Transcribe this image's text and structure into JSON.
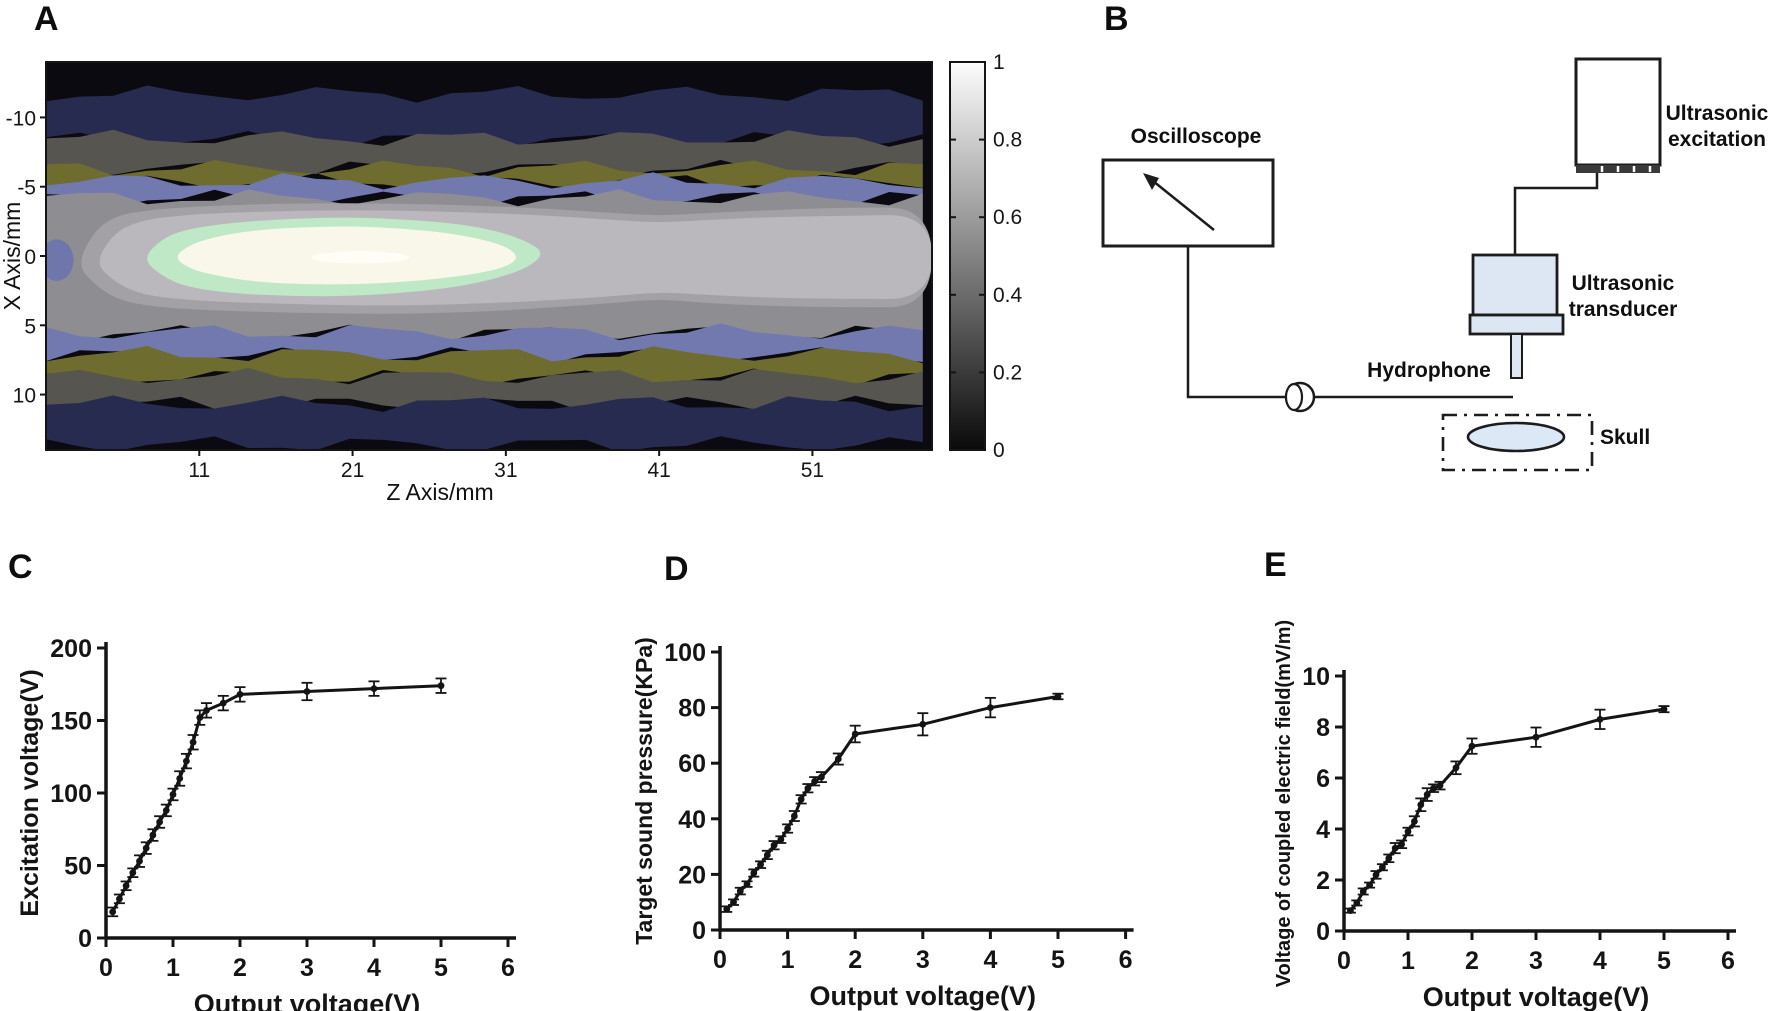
{
  "figure": {
    "labels": {
      "a": "A",
      "b": "B",
      "c": "C",
      "d": "D",
      "e": "E"
    }
  },
  "diagram": {
    "oscilloscope": "Oscilloscope",
    "excitation_line1": "Ultrasonic",
    "excitation_line2": "excitation",
    "transducer_line1": "Ultrasonic",
    "transducer_line2": "transducer",
    "hydrophone": "Hydrophone",
    "skull": "Skull"
  },
  "chart_data": [
    {
      "type": "heatmap",
      "panel": "A",
      "xlabel": "Z Axis/mm",
      "ylabel": "X Axis/mm",
      "xlim": [
        1,
        58.8
      ],
      "ylim": [
        -14,
        14
      ],
      "xticks": [
        11,
        21,
        31,
        41,
        51
      ],
      "yticks": [
        -10,
        -5,
        0,
        5,
        10
      ],
      "background": "#0b0a10",
      "colorbar": {
        "min": 0,
        "max": 1,
        "ticks": [
          {
            "v": 1,
            "label": "1"
          },
          {
            "v": 0.8,
            "label": "0.8"
          },
          {
            "v": 0.6,
            "label": "0.6"
          },
          {
            "v": 0.4,
            "label": "0.4"
          },
          {
            "v": 0.2,
            "label": "0.2"
          },
          {
            "v": 0,
            "label": "0"
          }
        ],
        "gradient_top": "#fdfdfd",
        "gradient_bottom": "#0a0a0a"
      },
      "bands": [
        {
          "color": "#282b50",
          "from": -11.7,
          "to": -8.4,
          "seed": 0.3
        },
        {
          "color": "#56554f",
          "from": -8.5,
          "to": -6.3,
          "seed": 2.1
        },
        {
          "color": "#6f6c2f",
          "from": -6.35,
          "to": -5.35,
          "seed": 4.2
        },
        {
          "color": "#7279af",
          "from": -5.4,
          "to": -4.15,
          "seed": 1.4
        },
        {
          "color": "#8e8d91",
          "from": -4.2,
          "to": 5.55,
          "seed": 2.8
        },
        {
          "color": "#7279af",
          "from": 5.5,
          "to": 7.15,
          "seed": 5.1
        },
        {
          "color": "#6f6c2f",
          "from": 7.1,
          "to": 8.75,
          "seed": 0.9
        },
        {
          "color": "#56554f",
          "from": 8.7,
          "to": 10.7,
          "seed": 3.3
        },
        {
          "color": "#282b50",
          "from": 10.65,
          "to": 13.6,
          "seed": 1.9
        }
      ],
      "blobs": [
        {
          "color": "#6f76ac",
          "ellipse": [
            1.7,
            0.3,
            1.1,
            1.5
          ]
        },
        {
          "color": "#a3a1a5",
          "points": [
            [
              3,
              0.6
            ],
            [
              4.2,
              -1.9
            ],
            [
              5.6,
              -2.9
            ],
            [
              7.5,
              -3.3
            ],
            [
              11,
              -3.6
            ],
            [
              17,
              -3.8
            ],
            [
              24,
              -3.8
            ],
            [
              30,
              -3.6
            ],
            [
              34,
              -3.4
            ],
            [
              38,
              -3.1
            ],
            [
              41,
              -2.9
            ],
            [
              44,
              -3.1
            ],
            [
              48,
              -3.3
            ],
            [
              53,
              -3.5
            ],
            [
              58.8,
              -3.5
            ],
            [
              58.8,
              3.7
            ],
            [
              53,
              3.7
            ],
            [
              48,
              3.6
            ],
            [
              44,
              3.4
            ],
            [
              41,
              3.1
            ],
            [
              38,
              3.4
            ],
            [
              34,
              3.7
            ],
            [
              30,
              4.0
            ],
            [
              24,
              4.2
            ],
            [
              17,
              4.1
            ],
            [
              11,
              3.9
            ],
            [
              7.5,
              3.6
            ],
            [
              5.6,
              3.1
            ],
            [
              4.2,
              2.1
            ]
          ]
        },
        {
          "color": "#bab8bc",
          "points": [
            [
              4.2,
              0.5
            ],
            [
              5.4,
              -1.6
            ],
            [
              6.8,
              -2.4
            ],
            [
              8.5,
              -2.8
            ],
            [
              12,
              -3.1
            ],
            [
              18,
              -3.3
            ],
            [
              24,
              -3.3
            ],
            [
              30,
              -3.1
            ],
            [
              34,
              -2.9
            ],
            [
              38,
              -2.6
            ],
            [
              41,
              -2.4
            ],
            [
              44,
              -2.6
            ],
            [
              48,
              -2.8
            ],
            [
              53,
              -2.9
            ],
            [
              58.8,
              -3.0
            ],
            [
              58.8,
              3.1
            ],
            [
              53,
              3.1
            ],
            [
              48,
              3.0
            ],
            [
              44,
              2.8
            ],
            [
              41,
              2.6
            ],
            [
              38,
              2.9
            ],
            [
              34,
              3.2
            ],
            [
              30,
              3.4
            ],
            [
              24,
              3.6
            ],
            [
              18,
              3.5
            ],
            [
              12,
              3.3
            ],
            [
              8.5,
              3.0
            ],
            [
              6.8,
              2.6
            ],
            [
              5.4,
              1.8
            ]
          ]
        },
        {
          "color": "#bfe8c6",
          "points": [
            [
              7.3,
              0.2
            ],
            [
              8.5,
              -1.2
            ],
            [
              10,
              -1.9
            ],
            [
              13,
              -2.4
            ],
            [
              17,
              -2.7
            ],
            [
              21,
              -2.8
            ],
            [
              25,
              -2.6
            ],
            [
              28,
              -2.3
            ],
            [
              30.5,
              -1.8
            ],
            [
              32.5,
              -1.0
            ],
            [
              33.5,
              -0.2
            ],
            [
              32.5,
              0.8
            ],
            [
              30.5,
              1.6
            ],
            [
              28,
              2.2
            ],
            [
              25,
              2.6
            ],
            [
              21,
              2.9
            ],
            [
              17,
              2.9
            ],
            [
              13,
              2.7
            ],
            [
              10,
              2.2
            ],
            [
              8.5,
              1.4
            ]
          ]
        },
        {
          "color": "#f9f7ea",
          "points": [
            [
              9.3,
              0.1
            ],
            [
              10.5,
              -0.9
            ],
            [
              12.5,
              -1.5
            ],
            [
              15,
              -1.9
            ],
            [
              18,
              -2.1
            ],
            [
              21,
              -2.15
            ],
            [
              24,
              -2.0
            ],
            [
              27,
              -1.7
            ],
            [
              29.5,
              -1.2
            ],
            [
              31.2,
              -0.6
            ],
            [
              31.8,
              0.1
            ],
            [
              31.2,
              0.7
            ],
            [
              29.5,
              1.2
            ],
            [
              27,
              1.6
            ],
            [
              24,
              1.9
            ],
            [
              21,
              2.05
            ],
            [
              18,
              2.05
            ],
            [
              15,
              1.9
            ],
            [
              12.5,
              1.5
            ],
            [
              10.5,
              1.0
            ]
          ]
        },
        {
          "color": "#fffdf6",
          "ellipse": [
            21.5,
            0.1,
            3.2,
            0.45
          ]
        }
      ]
    },
    {
      "type": "line",
      "panel": "C",
      "xlabel": "Output voltage(V)",
      "ylabel": "Excitation voltage(V)",
      "xlim": [
        0,
        6
      ],
      "ylim": [
        0,
        200
      ],
      "xticks": [
        0,
        1,
        2,
        3,
        4,
        5,
        6
      ],
      "yticks": [
        0,
        50,
        100,
        150,
        200
      ],
      "x": [
        0.1,
        0.2,
        0.3,
        0.4,
        0.5,
        0.6,
        0.7,
        0.8,
        0.9,
        1.0,
        1.1,
        1.2,
        1.3,
        1.4,
        1.5,
        1.75,
        2,
        3,
        4,
        5
      ],
      "y": [
        18,
        27,
        36,
        45,
        53,
        62,
        71,
        80,
        88,
        99,
        110,
        122,
        135,
        152,
        157,
        162,
        168,
        170,
        172,
        174
      ],
      "yerr": [
        3,
        3,
        3,
        3,
        4,
        4,
        4,
        4,
        4,
        4,
        5,
        5,
        5,
        5,
        5,
        5,
        5,
        6,
        5,
        5
      ]
    },
    {
      "type": "line",
      "panel": "D",
      "xlabel": "Output voltage(V)",
      "ylabel": "Target sound pressure(KPa)",
      "xlim": [
        0,
        6
      ],
      "ylim": [
        0,
        100
      ],
      "xticks": [
        0,
        1,
        2,
        3,
        4,
        5,
        6
      ],
      "yticks": [
        0,
        20,
        40,
        60,
        80,
        100
      ],
      "x": [
        0.1,
        0.2,
        0.3,
        0.4,
        0.5,
        0.6,
        0.7,
        0.8,
        0.9,
        1.0,
        1.1,
        1.2,
        1.3,
        1.4,
        1.5,
        1.75,
        2,
        3,
        4,
        5
      ],
      "y": [
        7.5,
        10,
        14,
        16.5,
        20.5,
        23.5,
        27,
        30.5,
        32.5,
        36.5,
        41,
        47,
        51,
        53.5,
        55,
        61.5,
        70.5,
        74,
        80,
        84
      ],
      "yerr": [
        1,
        1,
        1.2,
        1,
        1.3,
        1.2,
        1.5,
        1.5,
        1.2,
        1.5,
        1.8,
        1.5,
        1.5,
        1.5,
        1.8,
        2,
        3,
        4,
        3.5,
        1
      ]
    },
    {
      "type": "line",
      "panel": "E",
      "xlabel": "Output voltage(V)",
      "ylabel": "Voltage of coupled electric field(mV/m)",
      "xlim": [
        0,
        6
      ],
      "ylim": [
        0,
        10
      ],
      "xticks": [
        0,
        1,
        2,
        3,
        4,
        5,
        6
      ],
      "yticks": [
        0,
        2,
        4,
        6,
        8,
        10
      ],
      "x": [
        0.1,
        0.2,
        0.3,
        0.4,
        0.5,
        0.6,
        0.7,
        0.8,
        0.9,
        1.0,
        1.1,
        1.2,
        1.3,
        1.4,
        1.5,
        1.75,
        2,
        3,
        4,
        5
      ],
      "y": [
        0.8,
        1.1,
        1.55,
        1.8,
        2.2,
        2.5,
        2.85,
        3.25,
        3.4,
        3.9,
        4.3,
        4.95,
        5.35,
        5.6,
        5.7,
        6.4,
        7.25,
        7.6,
        8.3,
        8.7
      ],
      "yerr": [
        0.08,
        0.1,
        0.12,
        0.1,
        0.15,
        0.12,
        0.15,
        0.2,
        0.15,
        0.15,
        0.2,
        0.25,
        0.25,
        0.15,
        0.15,
        0.25,
        0.3,
        0.38,
        0.38,
        0.12
      ]
    }
  ]
}
